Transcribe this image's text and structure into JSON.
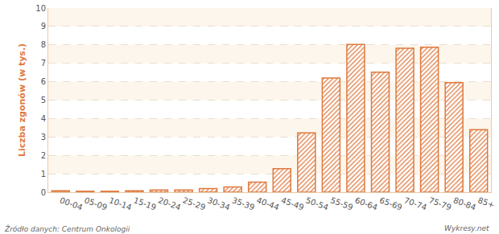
{
  "chart_data": {
    "type": "bar",
    "y_label": "Liczba zgonów (w tys.)",
    "categories": [
      "00-04",
      "05-09",
      "10-14",
      "15-19",
      "20-24",
      "25-29",
      "30-34",
      "35-39",
      "40-44",
      "45-49",
      "50-54",
      "55-59",
      "60-64",
      "65-69",
      "70-74",
      "75-79",
      "80-84",
      "85+"
    ],
    "values": [
      0.08,
      0.05,
      0.05,
      0.08,
      0.12,
      0.12,
      0.2,
      0.28,
      0.55,
      1.28,
      3.22,
      6.2,
      8.02,
      6.52,
      7.82,
      7.87,
      5.95,
      3.4
    ],
    "color": "#e07a3f",
    "ylim": [
      0,
      10
    ],
    "yticks": [
      0,
      1,
      2,
      3,
      4,
      5,
      6,
      7,
      8,
      9,
      10
    ],
    "grid": true,
    "source": "Źródło danych: Centrum Onkologii",
    "credit": "Wykresy.net"
  }
}
